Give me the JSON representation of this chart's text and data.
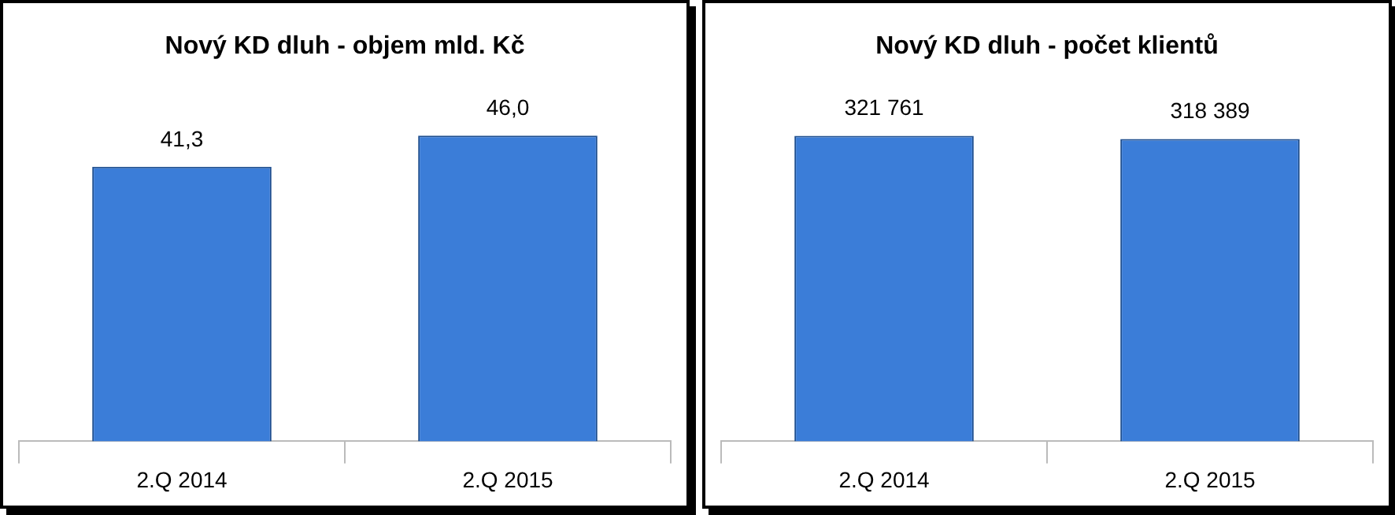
{
  "chart_data": [
    {
      "type": "bar",
      "title": "Nový KD dluh - objem mld. Kč",
      "categories": [
        "2.Q 2014",
        "2.Q 2015"
      ],
      "values": [
        41.3,
        46.0
      ],
      "value_labels": [
        "41,3",
        "46,0"
      ],
      "color": "#3b7dd8",
      "tick_labels": "x",
      "legend": false,
      "grid": false
    },
    {
      "type": "bar",
      "title": "Nový KD dluh - počet klientů",
      "categories": [
        "2.Q 2014",
        "2.Q 2015"
      ],
      "values": [
        321761,
        318389
      ],
      "value_labels": [
        "321 761",
        "318 389"
      ],
      "color": "#3b7dd8",
      "tick_labels": "x",
      "legend": false,
      "grid": false
    }
  ]
}
